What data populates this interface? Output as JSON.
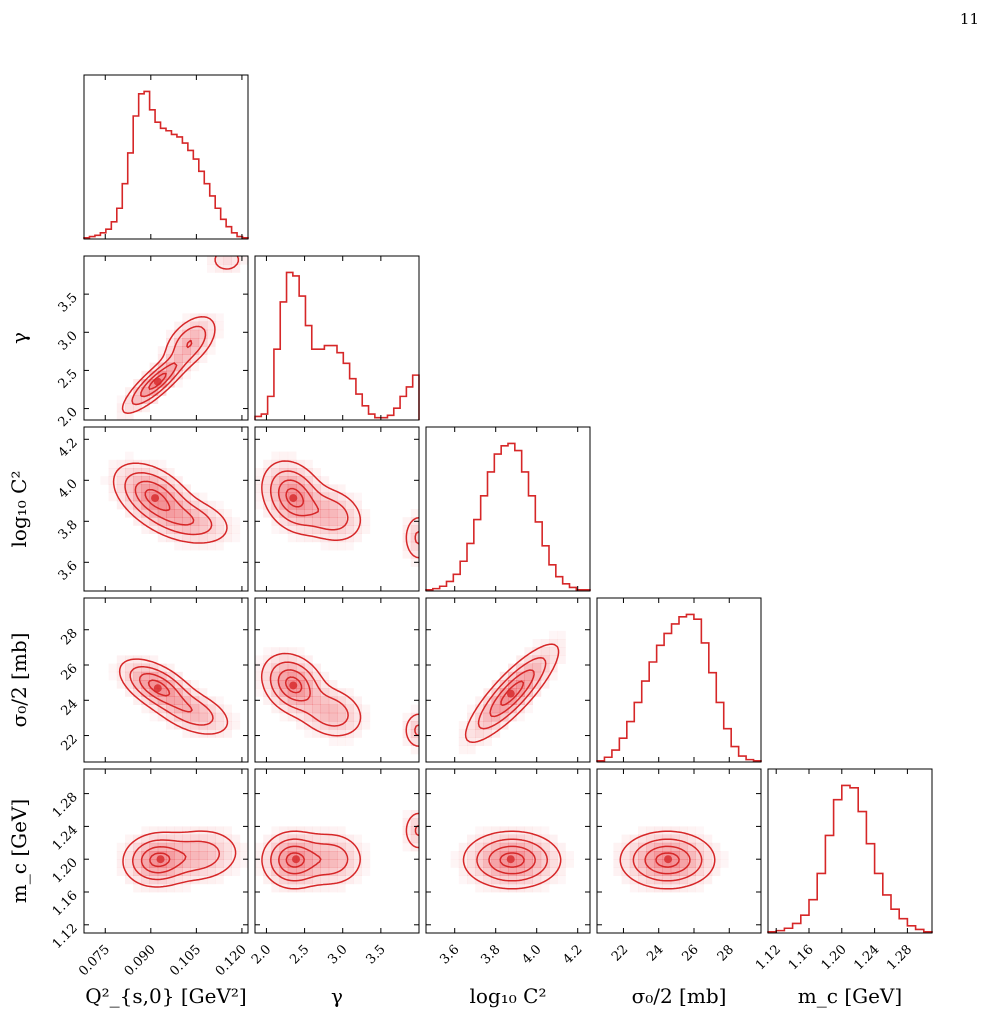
{
  "page": {
    "number": "11"
  },
  "chart_data": {
    "type": "corner",
    "line_color": "#d62728",
    "fill_color": "#e8323a",
    "parameters": [
      {
        "symbol": "Q²_s,0",
        "label": "Q²_{s,0} [GeV²]",
        "range": [
          0.068,
          0.122
        ],
        "ticks": [
          0.075,
          0.09,
          0.105,
          0.12
        ],
        "tick_labels": [
          "0.075",
          "0.090",
          "0.105",
          "0.120"
        ]
      },
      {
        "symbol": "γ",
        "label": "γ",
        "range": [
          1.85,
          4.0
        ],
        "ticks": [
          2.0,
          2.5,
          3.0,
          3.5
        ],
        "tick_labels": [
          "2.0",
          "2.5",
          "3.0",
          "3.5"
        ]
      },
      {
        "symbol": "log10 C²",
        "label": "log₁₀ C²",
        "range": [
          3.46,
          4.26
        ],
        "ticks": [
          3.6,
          3.8,
          4.0,
          4.2
        ],
        "tick_labels": [
          "3.6",
          "3.8",
          "4.0",
          "4.2"
        ]
      },
      {
        "symbol": "σ0/2",
        "label": "σ₀/2 [mb]",
        "range": [
          20.5,
          29.8
        ],
        "ticks": [
          22,
          24,
          26,
          28
        ],
        "tick_labels": [
          "22",
          "24",
          "26",
          "28"
        ]
      },
      {
        "symbol": "m_c",
        "label": "m_c [GeV]",
        "range": [
          1.11,
          1.31
        ],
        "ticks": [
          1.12,
          1.16,
          1.2,
          1.24,
          1.28
        ],
        "tick_labels": [
          "1.12",
          "1.16",
          "1.20",
          "1.24",
          "1.28"
        ]
      }
    ],
    "marginals": [
      {
        "parameter": 0,
        "counts": [
          1,
          2,
          3,
          5,
          8,
          14,
          25,
          45,
          70,
          100,
          118,
          120,
          105,
          95,
          90,
          88,
          85,
          83,
          78,
          72,
          65,
          55,
          45,
          35,
          25,
          16,
          10,
          5,
          2,
          1
        ]
      },
      {
        "parameter": 1,
        "counts": [
          3,
          5,
          20,
          60,
          100,
          125,
          122,
          105,
          80,
          60,
          60,
          63,
          63,
          57,
          48,
          35,
          22,
          12,
          5,
          2,
          2,
          4,
          10,
          20,
          28,
          38
        ]
      },
      {
        "parameter": 2,
        "counts": [
          1,
          2,
          4,
          8,
          14,
          25,
          40,
          60,
          80,
          100,
          115,
          122,
          124,
          118,
          100,
          80,
          58,
          38,
          22,
          12,
          6,
          3,
          1,
          1
        ]
      },
      {
        "parameter": 3,
        "counts": [
          1,
          4,
          10,
          20,
          34,
          50,
          68,
          84,
          98,
          108,
          116,
          122,
          124,
          120,
          100,
          75,
          50,
          28,
          13,
          5,
          2,
          1
        ]
      },
      {
        "parameter": 4,
        "counts": [
          1,
          2,
          4,
          8,
          15,
          28,
          50,
          82,
          112,
          124,
          122,
          102,
          75,
          50,
          32,
          20,
          12,
          6,
          3,
          1
        ]
      }
    ],
    "pairs": [
      {
        "row": 1,
        "col": 0,
        "gaussians": [
          {
            "mean": [
              0.092,
              2.35
            ],
            "sd": [
              0.0055,
              0.2
            ],
            "rho": 0.85,
            "w": 1.0
          },
          {
            "mean": [
              0.103,
              2.88
            ],
            "sd": [
              0.0045,
              0.18
            ],
            "rho": 0.5,
            "w": 0.6
          },
          {
            "mean": [
              0.115,
              3.95
            ],
            "sd": [
              0.0035,
              0.11
            ],
            "rho": 0.0,
            "w": 0.22
          }
        ]
      },
      {
        "row": 2,
        "col": 0,
        "gaussians": [
          {
            "mean": [
              0.091,
              3.92
            ],
            "sd": [
              0.0065,
              0.08
            ],
            "rho": -0.45,
            "w": 1.0
          },
          {
            "mean": [
              0.103,
              3.8
            ],
            "sd": [
              0.007,
              0.06
            ],
            "rho": -0.3,
            "w": 0.55
          }
        ]
      },
      {
        "row": 2,
        "col": 1,
        "gaussians": [
          {
            "mean": [
              2.35,
              3.92
            ],
            "sd": [
              0.2,
              0.085
            ],
            "rho": -0.25,
            "w": 1.0
          },
          {
            "mean": [
              2.85,
              3.83
            ],
            "sd": [
              0.22,
              0.07
            ],
            "rho": -0.2,
            "w": 0.55
          },
          {
            "mean": [
              4.0,
              3.72
            ],
            "sd": [
              0.11,
              0.065
            ],
            "rho": 0.0,
            "w": 0.38
          }
        ]
      },
      {
        "row": 3,
        "col": 0,
        "gaussians": [
          {
            "mean": [
              0.092,
              24.8
            ],
            "sd": [
              0.006,
              0.75
            ],
            "rho": -0.55,
            "w": 1.0
          },
          {
            "mean": [
              0.104,
              23.3
            ],
            "sd": [
              0.0065,
              0.7
            ],
            "rho": -0.45,
            "w": 0.55
          }
        ]
      },
      {
        "row": 3,
        "col": 1,
        "gaussians": [
          {
            "mean": [
              2.35,
              24.9
            ],
            "sd": [
              0.2,
              0.85
            ],
            "rho": -0.25,
            "w": 1.0
          },
          {
            "mean": [
              2.85,
              23.3
            ],
            "sd": [
              0.22,
              0.75
            ],
            "rho": -0.2,
            "w": 0.55
          },
          {
            "mean": [
              4.0,
              22.3
            ],
            "sd": [
              0.11,
              0.6
            ],
            "rho": 0.0,
            "w": 0.38
          }
        ]
      },
      {
        "row": 3,
        "col": 2,
        "gaussians": [
          {
            "mean": [
              3.88,
              24.4
            ],
            "sd": [
              0.11,
              1.35
            ],
            "rho": 0.85,
            "w": 1.0
          }
        ]
      },
      {
        "row": 4,
        "col": 0,
        "gaussians": [
          {
            "mean": [
              0.092,
              1.199
            ],
            "sd": [
              0.0055,
              0.016
            ],
            "rho": 0.05,
            "w": 1.0
          },
          {
            "mean": [
              0.106,
              1.205
            ],
            "sd": [
              0.007,
              0.017
            ],
            "rho": 0.1,
            "w": 0.55
          }
        ]
      },
      {
        "row": 4,
        "col": 1,
        "gaussians": [
          {
            "mean": [
              2.35,
              1.199
            ],
            "sd": [
              0.2,
              0.017
            ],
            "rho": 0.0,
            "w": 1.0
          },
          {
            "mean": [
              2.85,
              1.2
            ],
            "sd": [
              0.22,
              0.017
            ],
            "rho": 0.0,
            "w": 0.55
          },
          {
            "mean": [
              4.0,
              1.235
            ],
            "sd": [
              0.11,
              0.014
            ],
            "rho": 0.0,
            "w": 0.38
          }
        ]
      },
      {
        "row": 4,
        "col": 2,
        "gaussians": [
          {
            "mean": [
              3.88,
              1.199
            ],
            "sd": [
              0.115,
              0.017
            ],
            "rho": 0.0,
            "w": 1.0
          }
        ]
      },
      {
        "row": 4,
        "col": 3,
        "gaussians": [
          {
            "mean": [
              24.5,
              1.199
            ],
            "sd": [
              1.3,
              0.017
            ],
            "rho": 0.0,
            "w": 1.0
          }
        ]
      }
    ]
  }
}
